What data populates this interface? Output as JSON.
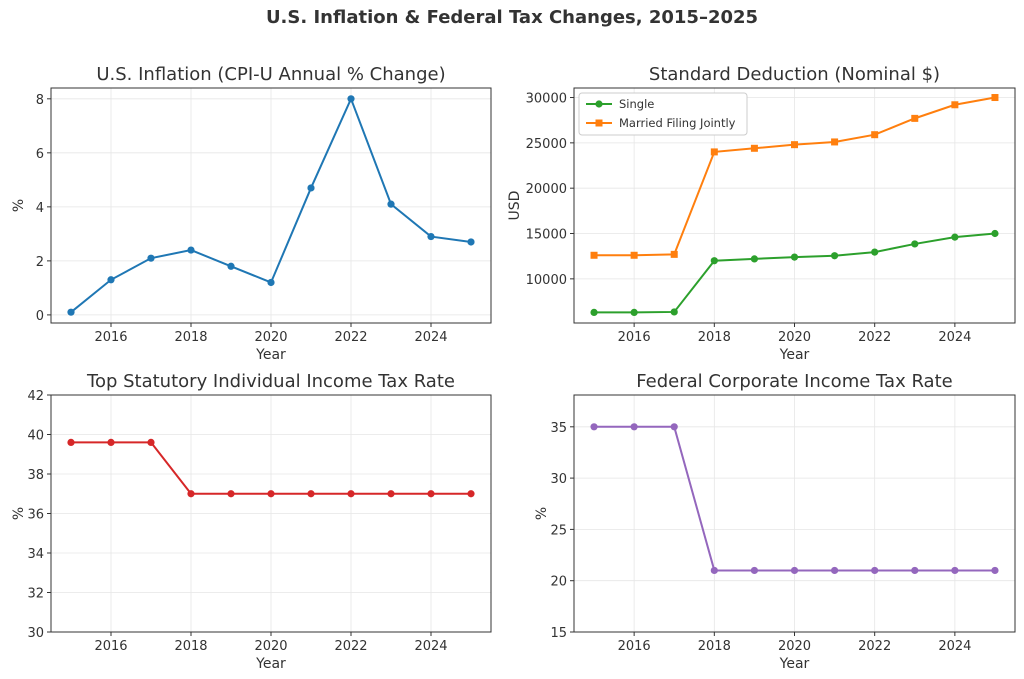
{
  "suptitle": "U.S. Inflation & Federal Tax Changes, 2015–2025",
  "chart_data": [
    {
      "type": "line",
      "title": "U.S. Inflation (CPI-U Annual % Change)",
      "xlabel": "Year",
      "ylabel": "%",
      "x": [
        2015,
        2016,
        2017,
        2018,
        2019,
        2020,
        2021,
        2022,
        2023,
        2024,
        2025
      ],
      "xticks": [
        2016,
        2018,
        2020,
        2022,
        2024
      ],
      "yticks": [
        0,
        2,
        4,
        6,
        8
      ],
      "ylim": [
        -0.3,
        8.4
      ],
      "grid": true,
      "series": [
        {
          "values": [
            0.1,
            1.3,
            2.1,
            2.4,
            1.8,
            1.2,
            4.7,
            8.0,
            4.1,
            2.9,
            2.7
          ],
          "color": "#1f77b4",
          "marker": "circle"
        }
      ]
    },
    {
      "type": "line",
      "title": "Standard Deduction (Nominal $)",
      "xlabel": "Year",
      "ylabel": "USD",
      "x": [
        2015,
        2016,
        2017,
        2018,
        2019,
        2020,
        2021,
        2022,
        2023,
        2024,
        2025
      ],
      "xticks": [
        2016,
        2018,
        2020,
        2022,
        2024
      ],
      "yticks": [
        10000,
        15000,
        20000,
        25000,
        30000
      ],
      "ylim": [
        5130,
        31050
      ],
      "grid": true,
      "legend": "top-left",
      "series": [
        {
          "name": "Single",
          "values": [
            6300,
            6300,
            6350,
            12000,
            12200,
            12400,
            12550,
            12950,
            13850,
            14600,
            15000
          ],
          "color": "#2ca02c",
          "marker": "circle"
        },
        {
          "name": "Married Filing Jointly",
          "values": [
            12600,
            12600,
            12700,
            24000,
            24400,
            24800,
            25100,
            25900,
            27700,
            29200,
            30000
          ],
          "color": "#ff7f0e",
          "marker": "square"
        }
      ]
    },
    {
      "type": "line",
      "title": "Top Statutory Individual Income Tax Rate",
      "xlabel": "Year",
      "ylabel": "%",
      "x": [
        2015,
        2016,
        2017,
        2018,
        2019,
        2020,
        2021,
        2022,
        2023,
        2024,
        2025
      ],
      "xticks": [
        2016,
        2018,
        2020,
        2022,
        2024
      ],
      "yticks": [
        30,
        32,
        34,
        36,
        38,
        40,
        42
      ],
      "ylim": [
        30,
        42
      ],
      "grid": true,
      "series": [
        {
          "values": [
            39.6,
            39.6,
            39.6,
            37,
            37,
            37,
            37,
            37,
            37,
            37,
            37
          ],
          "color": "#d62728",
          "marker": "circle"
        }
      ]
    },
    {
      "type": "line",
      "title": "Federal Corporate Income Tax Rate",
      "xlabel": "Year",
      "ylabel": "%",
      "x": [
        2015,
        2016,
        2017,
        2018,
        2019,
        2020,
        2021,
        2022,
        2023,
        2024,
        2025
      ],
      "xticks": [
        2016,
        2018,
        2020,
        2022,
        2024
      ],
      "yticks": [
        15,
        20,
        25,
        30,
        35
      ],
      "ylim": [
        15,
        38.1
      ],
      "grid": true,
      "series": [
        {
          "values": [
            35,
            35,
            35,
            21,
            21,
            21,
            21,
            21,
            21,
            21,
            21
          ],
          "color": "#9467bd",
          "marker": "circle"
        }
      ]
    }
  ]
}
